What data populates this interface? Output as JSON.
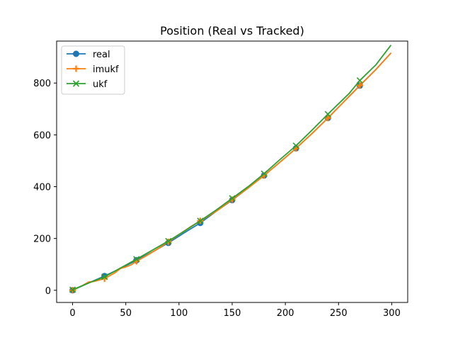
{
  "chart_data": {
    "type": "line",
    "title": "Position (Real vs Tracked)",
    "xlabel": "",
    "ylabel": "",
    "xlim": [
      -15,
      315
    ],
    "ylim": [
      -47,
      962
    ],
    "xticks": [
      0,
      50,
      100,
      150,
      200,
      250,
      300
    ],
    "yticks": [
      0,
      200,
      400,
      600,
      800
    ],
    "grid": false,
    "legend_position": "top-left",
    "series": [
      {
        "name": "real",
        "color": "#1f77b4",
        "marker": "circle",
        "x": [
          0,
          15,
          30,
          45,
          60,
          75,
          90,
          105,
          120,
          135,
          150,
          165,
          180,
          195,
          210,
          225,
          240,
          255,
          270,
          285,
          299
        ],
        "y": [
          0,
          28,
          55,
          84,
          116,
          148,
          183,
          222,
          260,
          305,
          348,
          395,
          443,
          495,
          548,
          605,
          665,
          728,
          790,
          852,
          915
        ]
      },
      {
        "name": "imukf",
        "color": "#ff7f0e",
        "marker": "plus",
        "x": [
          0,
          10,
          15,
          20,
          30,
          40,
          45,
          50,
          55,
          60,
          70,
          80,
          90,
          100,
          110,
          120,
          135,
          150,
          165,
          180,
          195,
          210,
          225,
          240,
          255,
          270,
          285,
          299
        ],
        "y": [
          0,
          20,
          32,
          34,
          45,
          68,
          84,
          90,
          98,
          112,
          135,
          160,
          187,
          215,
          243,
          268,
          305,
          350,
          395,
          443,
          495,
          548,
          605,
          665,
          728,
          791,
          852,
          915
        ]
      },
      {
        "name": "ukf",
        "color": "#2ca02c",
        "marker": "x",
        "x": [
          0,
          15,
          30,
          45,
          60,
          75,
          90,
          105,
          120,
          135,
          150,
          165,
          180,
          195,
          210,
          225,
          240,
          255,
          260,
          270,
          285,
          299
        ],
        "y": [
          2,
          28,
          52,
          86,
          120,
          155,
          190,
          228,
          268,
          310,
          355,
          400,
          450,
          505,
          558,
          618,
          680,
          740,
          760,
          810,
          870,
          945
        ]
      }
    ],
    "markers_at": [
      0,
      30,
      60,
      90,
      120,
      150,
      180,
      210,
      240,
      270
    ]
  }
}
